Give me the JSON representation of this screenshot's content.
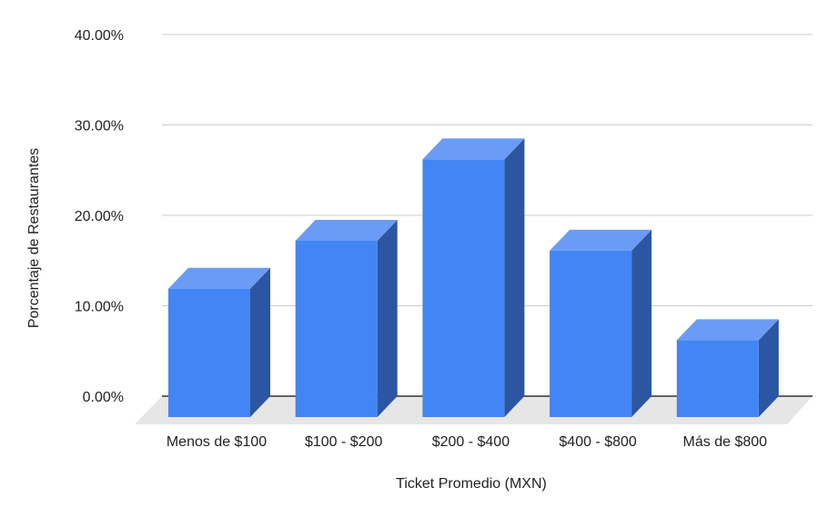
{
  "chart_data": {
    "type": "bar",
    "style": "3d-column",
    "categories": [
      "Menos de $100",
      "$100 - $200",
      "$200 - $400",
      "$400 - $800",
      "Más de $800"
    ],
    "series": [
      {
        "values": [
          14.2,
          19.5,
          28.5,
          18.4,
          8.5
        ]
      }
    ],
    "xlabel": "Ticket Promedio (MXN)",
    "ylabel": "Porcentaje de Restaurantes",
    "ylim": [
      0,
      40
    ],
    "yticks": [
      "0.00%",
      "10.00%",
      "20.00%",
      "30.00%",
      "40.00%"
    ],
    "grid": true,
    "legend": "none",
    "colors": {
      "bar_front": "#4285f4",
      "bar_top": "#6a9cf6",
      "bar_side": "#2d56a2",
      "floor": "#e6e6e6",
      "gridline": "#cccccc",
      "baseline": "#333333"
    }
  }
}
